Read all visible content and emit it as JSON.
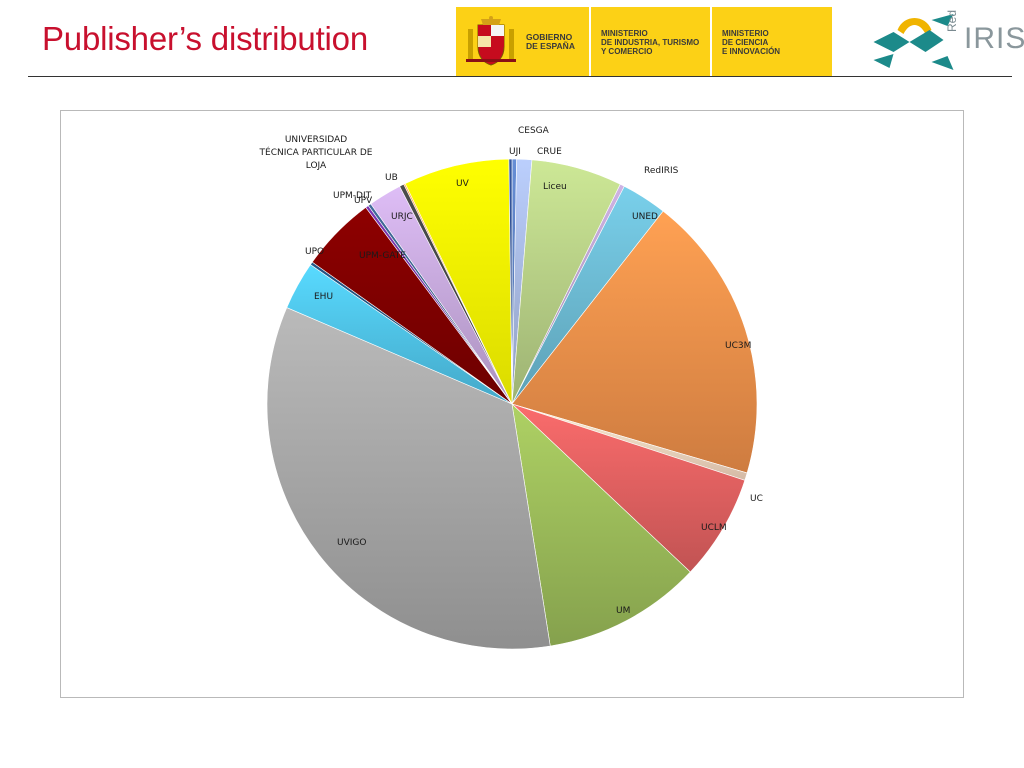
{
  "header": {
    "title": "Publisher’s distribution",
    "logos": {
      "gobierno": [
        "GOBIERNO",
        "DE ESPAÑA"
      ],
      "industria": [
        "MINISTERIO",
        "DE INDUSTRIA, TURISMO",
        "Y COMERCIO"
      ],
      "ciencia": [
        "MINISTERIO",
        "DE CIENCIA",
        "E INNOVACIÓN"
      ],
      "rediris": {
        "small": "Red",
        "big": "IRIS"
      }
    }
  },
  "chart_data": {
    "type": "pie",
    "title": "",
    "slices": [
      {
        "label": "CESGA",
        "value": 0.3,
        "color": "#5b7fbf"
      },
      {
        "label": "CRUE",
        "value": 1.0,
        "color": "#a7b9e2"
      },
      {
        "label": "Liceu",
        "value": 6.0,
        "color": "#b7cf86"
      },
      {
        "label": "RedIRIS",
        "value": 0.3,
        "color": "#b8a0cc"
      },
      {
        "label": "UNED",
        "value": 3.0,
        "color": "#6cbad2"
      },
      {
        "label": "UC3M",
        "value": 19.0,
        "color": "#f0904a"
      },
      {
        "label": "UC",
        "value": 0.5,
        "color": "#f6d7c0"
      },
      {
        "label": "UCLM",
        "value": 7.0,
        "color": "#e06060"
      },
      {
        "label": "UM",
        "value": 10.5,
        "color": "#9bbb59"
      },
      {
        "label": "UVIGO",
        "value": 34.0,
        "color": "#a6a6a6"
      },
      {
        "label": "EHU",
        "value": 3.2,
        "color": "#4fc3e8"
      },
      {
        "label": "UPO",
        "value": 0.2,
        "color": "#1f4e79"
      },
      {
        "label": "UPM-GATE",
        "value": 5.0,
        "color": "#7f0000"
      },
      {
        "label": "UPM-DIT",
        "value": 0.2,
        "color": "#7030a0"
      },
      {
        "label": "UPV",
        "value": 0.2,
        "color": "#3a5f8a"
      },
      {
        "label": "URJC",
        "value": 2.2,
        "color": "#c6a9dc"
      },
      {
        "label": "UB",
        "value": 0.3,
        "color": "#444444"
      },
      {
        "label": "UNIVERSIDAD TÉCNICA PARTICULAR DE LOJA",
        "value": 0.1,
        "color": "#f79646"
      },
      {
        "label": "UV",
        "value": 7.0,
        "color": "#ffff00"
      },
      {
        "label": "UJI",
        "value": 0.2,
        "color": "#2f4f8f"
      }
    ],
    "legend": "none (labels beside slices)"
  }
}
